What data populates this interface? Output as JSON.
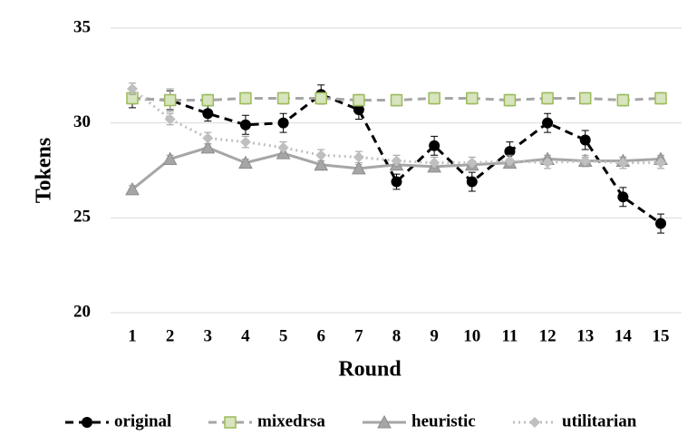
{
  "chart_data": {
    "type": "line",
    "x_label": "Round",
    "y_label": "Tokens",
    "categories": [
      "1",
      "2",
      "3",
      "4",
      "5",
      "6",
      "7",
      "8",
      "9",
      "10",
      "11",
      "12",
      "13",
      "14",
      "15"
    ],
    "ylim": [
      20,
      35
    ],
    "yticks": [
      20,
      25,
      30,
      35
    ],
    "grid": true,
    "legend": "bottom",
    "series": [
      {
        "name": "original",
        "color": "#000000",
        "dash": "dashed",
        "marker": "circle",
        "values": [
          31.3,
          31.2,
          30.5,
          29.9,
          30.0,
          31.5,
          30.7,
          26.9,
          28.8,
          26.9,
          28.5,
          30.0,
          29.1,
          26.1,
          24.7
        ],
        "errors": [
          0.5,
          0.5,
          0.4,
          0.5,
          0.5,
          0.5,
          0.5,
          0.4,
          0.5,
          0.5,
          0.5,
          0.5,
          0.5,
          0.5,
          0.5
        ]
      },
      {
        "name": "mixedrsa",
        "color": "#a6a6a6",
        "dash": "dashed",
        "marker": "square",
        "values": [
          31.3,
          31.2,
          31.2,
          31.3,
          31.3,
          31.3,
          31.2,
          31.2,
          31.3,
          31.3,
          31.2,
          31.3,
          31.3,
          31.2,
          31.3
        ],
        "errors": [
          0.3,
          0.6,
          0.3,
          0.3,
          0.3,
          0.3,
          0.3,
          0.3,
          0.3,
          0.3,
          0.3,
          0.3,
          0.3,
          0.3,
          0.3
        ]
      },
      {
        "name": "heuristic",
        "color": "#a6a6a6",
        "dash": "solid",
        "marker": "triangle",
        "values": [
          26.5,
          28.1,
          28.7,
          27.9,
          28.4,
          27.8,
          27.6,
          27.8,
          27.7,
          27.8,
          27.9,
          28.1,
          28.0,
          28.0,
          28.1
        ],
        "errors": [
          0.2,
          0.2,
          0.2,
          0.2,
          0.2,
          0.2,
          0.2,
          0.2,
          0.2,
          0.2,
          0.2,
          0.2,
          0.2,
          0.2,
          0.2
        ]
      },
      {
        "name": "utilitarian",
        "color": "#bfbfbf",
        "dash": "dotted",
        "marker": "diamond",
        "values": [
          31.8,
          30.2,
          29.2,
          29.0,
          28.7,
          28.3,
          28.2,
          28.0,
          27.9,
          27.9,
          28.0,
          27.9,
          28.0,
          27.9,
          27.9
        ],
        "errors": [
          0.3,
          0.3,
          0.3,
          0.3,
          0.3,
          0.3,
          0.3,
          0.3,
          0.3,
          0.3,
          0.3,
          0.3,
          0.3,
          0.3,
          0.3
        ]
      }
    ]
  }
}
